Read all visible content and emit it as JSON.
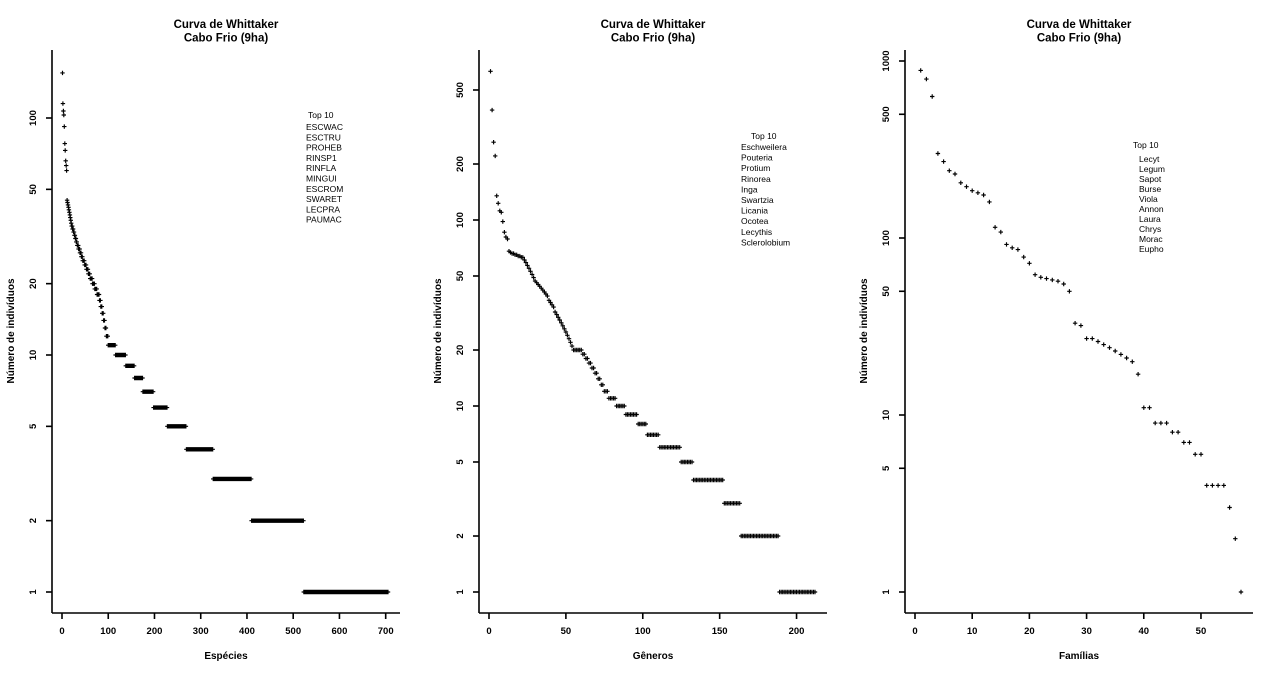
{
  "colors": {
    "foreground": "#000000",
    "background": "#ffffff"
  },
  "chart_data": [
    {
      "type": "scatter",
      "title": "Curva de Whittaker",
      "subtitle": "Cabo Frio (9ha)",
      "xlabel": "Espécies",
      "ylabel": "Número de indivíduos",
      "y_scale": "log",
      "grid": false,
      "xlim": [
        0,
        705
      ],
      "ylim": [
        1,
        155
      ],
      "x_ticks": [
        0,
        100,
        200,
        300,
        400,
        500,
        600,
        700
      ],
      "y_ticks": [
        1,
        2,
        5,
        10,
        20,
        50,
        100
      ],
      "legend": {
        "title": "Top 10",
        "position": "right-upper",
        "items": [
          "ESCWAC",
          "ESCTRU",
          "PROHEB",
          "RINSP1",
          "RINFLA",
          "MINGUI",
          "ESCROM",
          "SWARET",
          "LECPRA",
          "PAUMAC"
        ]
      },
      "abundance_runs": [
        [
          155,
          1
        ],
        [
          115,
          1
        ],
        [
          107,
          1
        ],
        [
          103,
          1
        ],
        [
          92,
          1
        ],
        [
          78,
          1
        ],
        [
          73,
          1
        ],
        [
          66,
          1
        ],
        [
          63,
          1
        ],
        [
          60,
          1
        ],
        [
          45,
          1
        ],
        [
          44,
          1
        ],
        [
          43,
          1
        ],
        [
          42,
          1
        ],
        [
          41,
          1
        ],
        [
          40,
          1
        ],
        [
          39,
          1
        ],
        [
          38,
          1
        ],
        [
          37,
          1
        ],
        [
          36,
          1
        ],
        [
          35,
          2
        ],
        [
          34,
          2
        ],
        [
          33,
          2
        ],
        [
          32,
          2
        ],
        [
          31,
          2
        ],
        [
          30,
          2
        ],
        [
          29,
          3
        ],
        [
          28,
          3
        ],
        [
          27,
          3
        ],
        [
          26,
          3
        ],
        [
          25,
          4
        ],
        [
          24,
          4
        ],
        [
          23,
          4
        ],
        [
          22,
          4
        ],
        [
          21,
          5
        ],
        [
          20,
          5
        ],
        [
          19,
          5
        ],
        [
          18,
          5
        ],
        [
          17,
          3
        ],
        [
          16,
          3
        ],
        [
          15,
          3
        ],
        [
          14,
          3
        ],
        [
          13,
          3
        ],
        [
          12,
          4
        ],
        [
          11,
          16
        ],
        [
          10,
          22
        ],
        [
          9,
          19
        ],
        [
          8,
          18
        ],
        [
          7,
          23
        ],
        [
          6,
          30
        ],
        [
          5,
          41
        ],
        [
          4,
          58
        ],
        [
          3,
          83
        ],
        [
          2,
          113
        ],
        [
          1,
          183
        ]
      ]
    },
    {
      "type": "scatter",
      "title": "Curva de Whittaker",
      "subtitle": "Cabo Frio (9ha)",
      "xlabel": "Gêneros",
      "ylabel": "Número de indivíduos",
      "y_scale": "log",
      "grid": false,
      "xlim": [
        0,
        212
      ],
      "ylim": [
        1,
        630
      ],
      "x_ticks": [
        0,
        50,
        100,
        150,
        200
      ],
      "y_ticks": [
        1,
        2,
        5,
        10,
        20,
        50,
        100,
        200,
        500
      ],
      "legend": {
        "title": "Top 10",
        "position": "right-upper",
        "items": [
          "Eschweilera",
          "Pouteria",
          "Protium",
          "Rinorea",
          "Inga",
          "Swartzia",
          "Licania",
          "Ocotea",
          "Lecythis",
          "Sclerolobium"
        ]
      },
      "abundance_runs": [
        [
          630,
          1
        ],
        [
          390,
          1
        ],
        [
          262,
          1
        ],
        [
          221,
          1
        ],
        [
          135,
          1
        ],
        [
          123,
          1
        ],
        [
          112,
          1
        ],
        [
          110,
          1
        ],
        [
          98,
          1
        ],
        [
          86,
          1
        ],
        [
          81,
          1
        ],
        [
          79,
          1
        ],
        [
          68,
          1
        ],
        [
          67,
          1
        ],
        [
          66,
          2
        ],
        [
          65,
          2
        ],
        [
          64,
          2
        ],
        [
          63,
          2
        ],
        [
          61,
          1
        ],
        [
          59,
          1
        ],
        [
          57,
          1
        ],
        [
          55,
          1
        ],
        [
          53,
          1
        ],
        [
          51,
          1
        ],
        [
          49,
          1
        ],
        [
          47,
          1
        ],
        [
          46,
          1
        ],
        [
          45,
          1
        ],
        [
          44,
          1
        ],
        [
          43,
          1
        ],
        [
          42,
          1
        ],
        [
          41,
          1
        ],
        [
          40,
          1
        ],
        [
          39,
          1
        ],
        [
          37,
          1
        ],
        [
          36,
          1
        ],
        [
          35,
          1
        ],
        [
          34,
          1
        ],
        [
          32,
          1
        ],
        [
          31,
          1
        ],
        [
          30,
          1
        ],
        [
          29,
          1
        ],
        [
          28,
          1
        ],
        [
          27,
          1
        ],
        [
          26,
          1
        ],
        [
          25,
          1
        ],
        [
          24,
          1
        ],
        [
          23,
          1
        ],
        [
          22,
          1
        ],
        [
          21,
          1
        ],
        [
          20,
          6
        ],
        [
          19,
          2
        ],
        [
          18,
          2
        ],
        [
          17,
          2
        ],
        [
          16,
          2
        ],
        [
          15,
          2
        ],
        [
          14,
          2
        ],
        [
          13,
          2
        ],
        [
          12,
          3
        ],
        [
          11,
          5
        ],
        [
          10,
          6
        ],
        [
          9,
          8
        ],
        [
          8,
          6
        ],
        [
          7,
          8
        ],
        [
          6,
          14
        ],
        [
          5,
          8
        ],
        [
          4,
          20
        ],
        [
          3,
          11
        ],
        [
          2,
          25
        ],
        [
          1,
          24
        ]
      ]
    },
    {
      "type": "scatter",
      "title": "Curva de Whittaker",
      "subtitle": "Cabo Frio (9ha)",
      "xlabel": "Famílias",
      "ylabel": "Número de indivíduos",
      "y_scale": "log",
      "grid": false,
      "xlim": [
        0,
        57
      ],
      "ylim": [
        1,
        885
      ],
      "x_ticks": [
        0,
        10,
        20,
        30,
        40,
        50
      ],
      "y_ticks": [
        1,
        5,
        10,
        50,
        100,
        500,
        1000
      ],
      "legend": {
        "title": "Top 10",
        "position": "right-upper",
        "items": [
          "Lecyt",
          "Legum",
          "Sapot",
          "Burse",
          "Viola",
          "Annon",
          "Laura",
          "Chrys",
          "Morac",
          "Eupho"
        ]
      },
      "abundance_runs": [
        [
          885,
          1
        ],
        [
          790,
          1
        ],
        [
          630,
          1
        ],
        [
          300,
          1
        ],
        [
          270,
          1
        ],
        [
          240,
          1
        ],
        [
          230,
          1
        ],
        [
          205,
          1
        ],
        [
          195,
          1
        ],
        [
          185,
          1
        ],
        [
          180,
          1
        ],
        [
          175,
          1
        ],
        [
          160,
          1
        ],
        [
          115,
          1
        ],
        [
          108,
          1
        ],
        [
          92,
          1
        ],
        [
          88,
          1
        ],
        [
          86,
          1
        ],
        [
          78,
          1
        ],
        [
          72,
          1
        ],
        [
          62,
          1
        ],
        [
          60,
          1
        ],
        [
          59,
          1
        ],
        [
          58,
          1
        ],
        [
          57,
          1
        ],
        [
          55,
          1
        ],
        [
          50,
          1
        ],
        [
          33,
          1
        ],
        [
          32,
          1
        ],
        [
          27,
          2
        ],
        [
          26,
          1
        ],
        [
          25,
          1
        ],
        [
          24,
          1
        ],
        [
          23,
          1
        ],
        [
          22,
          1
        ],
        [
          21,
          1
        ],
        [
          20,
          1
        ],
        [
          17,
          1
        ],
        [
          11,
          2
        ],
        [
          9,
          3
        ],
        [
          8,
          2
        ],
        [
          7,
          2
        ],
        [
          6,
          2
        ],
        [
          4,
          4
        ],
        [
          3,
          1
        ],
        [
          2,
          1
        ],
        [
          1,
          1
        ]
      ]
    }
  ]
}
